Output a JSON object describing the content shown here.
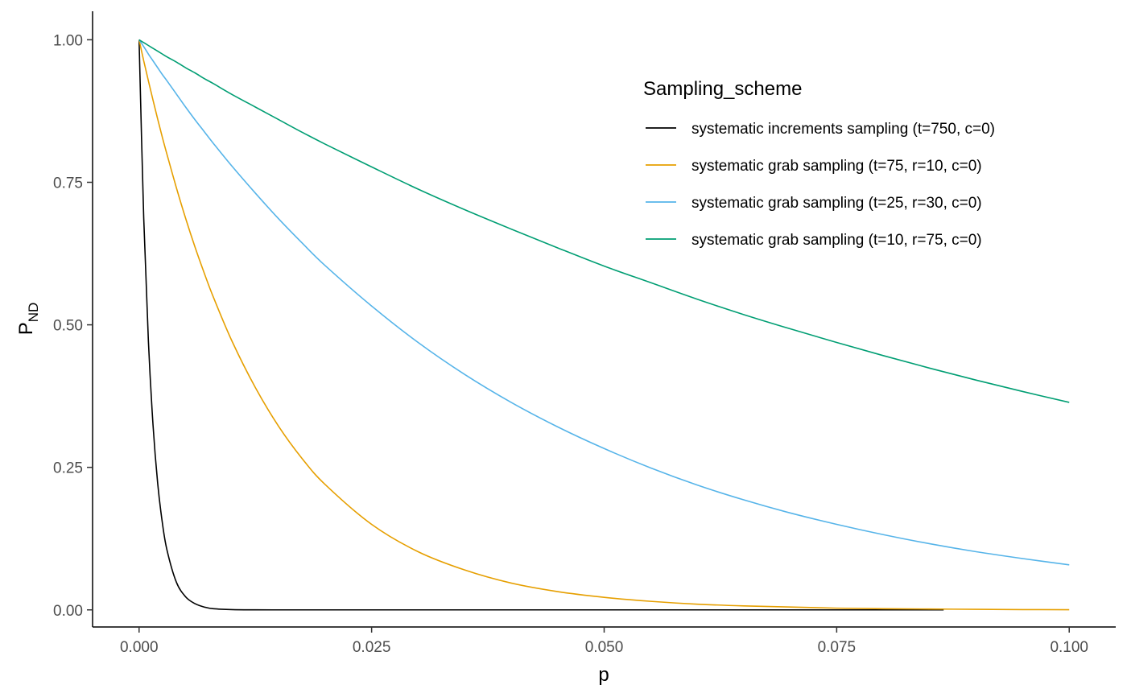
{
  "chart_data": {
    "type": "line",
    "xlabel": "p",
    "ylabel": "P",
    "ylabel_subscript": "ND",
    "xlim": [
      -0.005,
      0.105
    ],
    "ylim": [
      -0.03,
      1.05
    ],
    "x_ticks": [
      0.0,
      0.025,
      0.05,
      0.075,
      0.1
    ],
    "x_tick_labels": [
      "0.000",
      "0.025",
      "0.050",
      "0.075",
      "0.100"
    ],
    "y_ticks": [
      0.0,
      0.25,
      0.5,
      0.75,
      1.0
    ],
    "y_tick_labels": [
      "0.00",
      "0.25",
      "0.50",
      "0.75",
      "1.00"
    ],
    "grid": false,
    "legend": {
      "title": "Sampling_scheme",
      "position": "top-right"
    },
    "x": [
      0,
      0.0005,
      0.001,
      0.0015,
      0.002,
      0.0025,
      0.003,
      0.004,
      0.005,
      0.006,
      0.007,
      0.008,
      0.01,
      0.0125,
      0.015,
      0.0175,
      0.02,
      0.025,
      0.03,
      0.035,
      0.04,
      0.045,
      0.05,
      0.055,
      0.06,
      0.065,
      0.07,
      0.075,
      0.08,
      0.085,
      0.09,
      0.095,
      0.1
    ],
    "series": [
      {
        "name": "systematic increments sampling (t=750, c=0)",
        "color": "#000000",
        "x_end": 0.0865,
        "values": [
          1.0,
          0.687,
          0.472,
          0.324,
          0.222,
          0.153,
          0.105,
          0.049,
          0.023,
          0.011,
          0.005,
          0.002,
          0.0005,
          0.0001,
          0.0,
          0.0,
          0.0,
          0.0,
          0.0,
          0.0,
          0.0,
          0.0,
          0.0,
          0.0,
          0.0,
          0.0,
          0.0,
          0.0,
          0.0,
          0.0,
          0.0,
          0.0,
          0.0
        ]
      },
      {
        "name": "systematic grab sampling (t=75, r=10, c=0)",
        "color": "#e69f00",
        "values": [
          1.0,
          0.963,
          0.928,
          0.894,
          0.861,
          0.829,
          0.799,
          0.741,
          0.687,
          0.637,
          0.591,
          0.548,
          0.471,
          0.39,
          0.322,
          0.266,
          0.22,
          0.15,
          0.102,
          0.07,
          0.047,
          0.032,
          0.022,
          0.015,
          0.01,
          0.007,
          0.005,
          0.003,
          0.002,
          0.0015,
          0.001,
          0.0005,
          0.0003
        ]
      },
      {
        "name": "systematic grab sampling (t=25, r=30, c=0)",
        "color": "#56b4e9",
        "values": [
          1.0,
          0.988,
          0.975,
          0.963,
          0.951,
          0.939,
          0.928,
          0.905,
          0.882,
          0.86,
          0.839,
          0.818,
          0.778,
          0.731,
          0.686,
          0.644,
          0.604,
          0.533,
          0.469,
          0.413,
          0.364,
          0.321,
          0.283,
          0.249,
          0.219,
          0.193,
          0.17,
          0.15,
          0.132,
          0.116,
          0.102,
          0.09,
          0.079
        ]
      },
      {
        "name": "systematic grab sampling (t=10, r=75, c=0)",
        "color": "#009e73",
        "values": [
          1.0,
          0.995,
          0.99,
          0.985,
          0.98,
          0.975,
          0.97,
          0.961,
          0.951,
          0.942,
          0.932,
          0.923,
          0.904,
          0.882,
          0.86,
          0.838,
          0.817,
          0.777,
          0.738,
          0.702,
          0.668,
          0.635,
          0.603,
          0.574,
          0.545,
          0.518,
          0.493,
          0.469,
          0.446,
          0.424,
          0.403,
          0.383,
          0.364
        ]
      }
    ]
  }
}
